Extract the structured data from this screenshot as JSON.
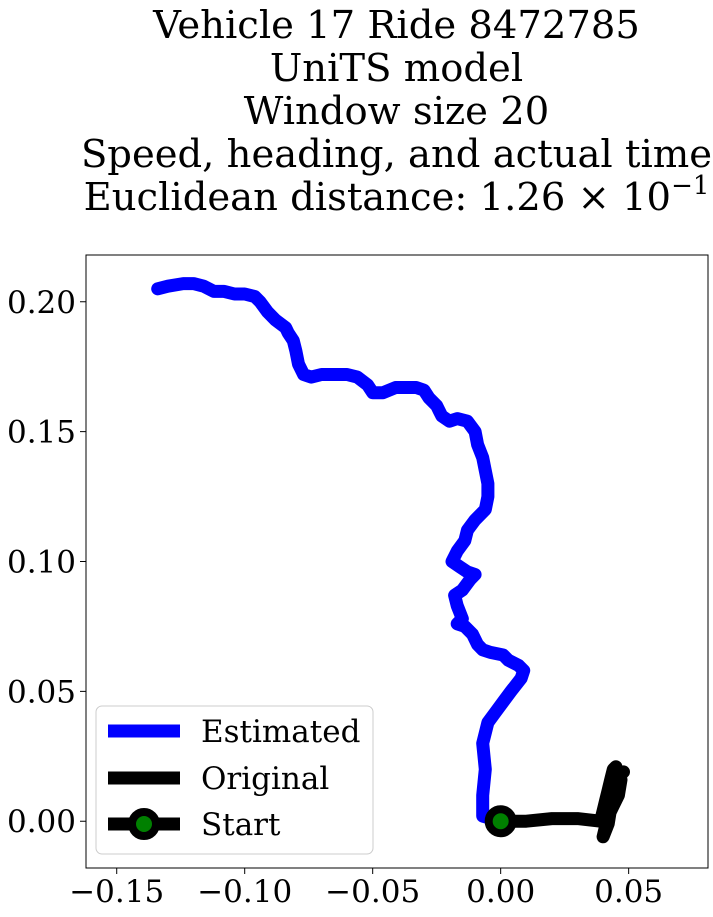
{
  "title": {
    "line1": "Vehicle 17 Ride 8472785",
    "line2": "UniTS model",
    "line3": "Window size 20",
    "line4": "Speed, heading, and actual time",
    "line5_prefix": "Euclidean distance: 1.26 × 10",
    "line5_exp": "−1"
  },
  "chart_data": {
    "type": "line",
    "xlim": [
      -0.162,
      0.081
    ],
    "ylim": [
      -0.018,
      0.218
    ],
    "x_ticks": [
      {
        "v": -0.15,
        "label": "−0.15"
      },
      {
        "v": -0.1,
        "label": "−0.10"
      },
      {
        "v": -0.05,
        "label": "−0.05"
      },
      {
        "v": 0.0,
        "label": "0.00"
      },
      {
        "v": 0.05,
        "label": "0.05"
      }
    ],
    "y_ticks": [
      {
        "v": 0.0,
        "label": "0.00"
      },
      {
        "v": 0.05,
        "label": "0.05"
      },
      {
        "v": 0.1,
        "label": "0.10"
      },
      {
        "v": 0.15,
        "label": "0.15"
      },
      {
        "v": 0.2,
        "label": "0.20"
      }
    ],
    "grid": false,
    "legend_placement": "lower-left",
    "series": [
      {
        "name": "Estimated",
        "color": "#0000ff",
        "points": [
          [
            0.0,
            0.0
          ],
          [
            -0.007,
            0.002
          ],
          [
            -0.007,
            0.01
          ],
          [
            -0.006,
            0.02
          ],
          [
            -0.007,
            0.03
          ],
          [
            -0.005,
            0.038
          ],
          [
            -0.002,
            0.042
          ],
          [
            0.001,
            0.046
          ],
          [
            0.004,
            0.05
          ],
          [
            0.008,
            0.055
          ],
          [
            0.009,
            0.058
          ],
          [
            0.007,
            0.06
          ],
          [
            0.003,
            0.062
          ],
          [
            0.001,
            0.064
          ],
          [
            -0.004,
            0.065
          ],
          [
            -0.007,
            0.066
          ],
          [
            -0.009,
            0.068
          ],
          [
            -0.011,
            0.072
          ],
          [
            -0.014,
            0.075
          ],
          [
            -0.017,
            0.076
          ],
          [
            -0.015,
            0.078
          ],
          [
            -0.017,
            0.083
          ],
          [
            -0.018,
            0.087
          ],
          [
            -0.015,
            0.089
          ],
          [
            -0.012,
            0.093
          ],
          [
            -0.01,
            0.095
          ],
          [
            -0.013,
            0.096
          ],
          [
            -0.016,
            0.098
          ],
          [
            -0.019,
            0.1
          ],
          [
            -0.017,
            0.104
          ],
          [
            -0.014,
            0.108
          ],
          [
            -0.013,
            0.112
          ],
          [
            -0.01,
            0.116
          ],
          [
            -0.006,
            0.12
          ],
          [
            -0.005,
            0.125
          ],
          [
            -0.005,
            0.13
          ],
          [
            -0.006,
            0.135
          ],
          [
            -0.007,
            0.14
          ],
          [
            -0.009,
            0.145
          ],
          [
            -0.01,
            0.15
          ],
          [
            -0.013,
            0.154
          ],
          [
            -0.017,
            0.155
          ],
          [
            -0.02,
            0.154
          ],
          [
            -0.023,
            0.156
          ],
          [
            -0.024,
            0.158
          ],
          [
            -0.025,
            0.16
          ],
          [
            -0.028,
            0.163
          ],
          [
            -0.03,
            0.166
          ],
          [
            -0.033,
            0.167
          ],
          [
            -0.037,
            0.167
          ],
          [
            -0.041,
            0.167
          ],
          [
            -0.046,
            0.165
          ],
          [
            -0.05,
            0.165
          ],
          [
            -0.052,
            0.168
          ],
          [
            -0.056,
            0.171
          ],
          [
            -0.06,
            0.172
          ],
          [
            -0.065,
            0.172
          ],
          [
            -0.07,
            0.172
          ],
          [
            -0.074,
            0.171
          ],
          [
            -0.077,
            0.172
          ],
          [
            -0.079,
            0.176
          ],
          [
            -0.08,
            0.181
          ],
          [
            -0.081,
            0.185
          ],
          [
            -0.083,
            0.188
          ],
          [
            -0.084,
            0.19
          ],
          [
            -0.088,
            0.193
          ],
          [
            -0.091,
            0.196
          ],
          [
            -0.094,
            0.2
          ],
          [
            -0.096,
            0.202
          ],
          [
            -0.1,
            0.203
          ],
          [
            -0.104,
            0.203
          ],
          [
            -0.108,
            0.204
          ],
          [
            -0.112,
            0.204
          ],
          [
            -0.116,
            0.206
          ],
          [
            -0.12,
            0.207
          ],
          [
            -0.124,
            0.207
          ],
          [
            -0.13,
            0.206
          ],
          [
            -0.134,
            0.205
          ]
        ]
      },
      {
        "name": "Original",
        "color": "#000000",
        "points": [
          [
            0.0,
            0.0
          ],
          [
            0.01,
            0.0
          ],
          [
            0.02,
            0.001
          ],
          [
            0.03,
            0.001
          ],
          [
            0.039,
            0.0
          ],
          [
            0.04,
            0.004
          ],
          [
            0.041,
            0.008
          ],
          [
            0.042,
            0.012
          ],
          [
            0.043,
            0.016
          ],
          [
            0.044,
            0.02
          ],
          [
            0.045,
            0.021
          ],
          [
            0.046,
            0.018
          ],
          [
            0.047,
            0.016
          ],
          [
            0.046,
            0.01
          ],
          [
            0.044,
            0.006
          ],
          [
            0.042,
            0.002
          ],
          [
            0.041,
            -0.002
          ],
          [
            0.04,
            -0.006
          ],
          [
            0.042,
            -0.001
          ],
          [
            0.043,
            0.005
          ],
          [
            0.044,
            0.011
          ],
          [
            0.045,
            0.016
          ],
          [
            0.048,
            0.019
          ]
        ]
      }
    ],
    "start": {
      "name": "Start",
      "x": 0.0,
      "y": 0.0,
      "fill": "#008000",
      "edge": "#000000"
    }
  }
}
